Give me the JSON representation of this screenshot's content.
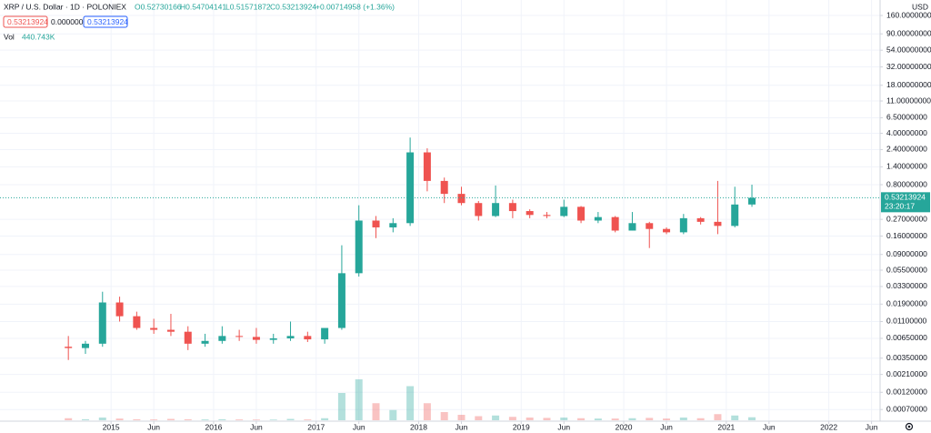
{
  "chart_data": {
    "type": "candlestick",
    "title": "XRP / U.S. Dollar · 1D · POLONIEX",
    "ohlc_labels": [
      "O0.52730166",
      "H0.54704141",
      "L0.51571872",
      "C0.53213924",
      "+0.00714958 (+1.36%)"
    ],
    "badges": [
      "0.53213924",
      "0.00000000",
      "0.53213924"
    ],
    "volume_label": "Vol",
    "volume_value": "440.743K",
    "currency": "USD",
    "last_price": 0.53213924,
    "countdown": "23:20:17",
    "log_scale": true,
    "grid": true,
    "up_color": "#26a69a",
    "down_color": "#ef5350",
    "x": [
      "2014-08",
      "2014-10",
      "2014-12",
      "2015-02",
      "2015-04",
      "2015-06",
      "2015-08",
      "2015-10",
      "2015-12",
      "2016-02",
      "2016-04",
      "2016-06",
      "2016-08",
      "2016-10",
      "2016-12",
      "2017-02",
      "2017-04",
      "2017-06",
      "2017-08",
      "2017-10",
      "2017-12",
      "2018-02",
      "2018-04",
      "2018-06",
      "2018-08",
      "2018-10",
      "2018-12",
      "2019-02",
      "2019-04",
      "2019-06",
      "2019-08",
      "2019-10",
      "2019-12",
      "2020-02",
      "2020-04",
      "2020-06",
      "2020-08",
      "2020-10",
      "2020-12",
      "2021-02",
      "2021-04"
    ],
    "open": [
      0.005,
      0.0048,
      0.0055,
      0.02,
      0.013,
      0.009,
      0.0085,
      0.008,
      0.0055,
      0.006,
      0.007,
      0.0068,
      0.0062,
      0.0065,
      0.007,
      0.0063,
      0.009,
      0.05,
      0.26,
      0.21,
      0.24,
      2.2,
      0.9,
      0.6,
      0.45,
      0.3,
      0.45,
      0.35,
      0.31,
      0.3,
      0.4,
      0.26,
      0.29,
      0.19,
      0.24,
      0.2,
      0.18,
      0.28,
      0.25,
      0.22,
      0.43
    ],
    "high": [
      0.007,
      0.006,
      0.028,
      0.024,
      0.015,
      0.012,
      0.014,
      0.0095,
      0.0075,
      0.0095,
      0.0085,
      0.009,
      0.0075,
      0.011,
      0.008,
      0.0075,
      0.12,
      0.42,
      0.3,
      0.28,
      3.5,
      2.5,
      1.0,
      0.75,
      0.48,
      0.78,
      0.5,
      0.37,
      0.34,
      0.5,
      0.41,
      0.34,
      0.3,
      0.34,
      0.25,
      0.21,
      0.32,
      0.29,
      0.9,
      0.75,
      0.8
    ],
    "low": [
      0.0033,
      0.004,
      0.005,
      0.011,
      0.0085,
      0.0075,
      0.007,
      0.0045,
      0.005,
      0.0055,
      0.006,
      0.0055,
      0.0055,
      0.006,
      0.0058,
      0.0055,
      0.0085,
      0.045,
      0.15,
      0.18,
      0.22,
      0.65,
      0.45,
      0.42,
      0.26,
      0.29,
      0.28,
      0.28,
      0.28,
      0.29,
      0.24,
      0.24,
      0.18,
      0.19,
      0.11,
      0.17,
      0.17,
      0.23,
      0.17,
      0.21,
      0.4
    ],
    "close": [
      0.0048,
      0.0055,
      0.02,
      0.013,
      0.009,
      0.0085,
      0.008,
      0.0055,
      0.006,
      0.007,
      0.0068,
      0.0062,
      0.0065,
      0.007,
      0.0063,
      0.009,
      0.05,
      0.26,
      0.21,
      0.24,
      2.2,
      0.9,
      0.6,
      0.45,
      0.3,
      0.45,
      0.35,
      0.31,
      0.3,
      0.4,
      0.26,
      0.29,
      0.19,
      0.24,
      0.2,
      0.18,
      0.28,
      0.25,
      0.22,
      0.43,
      0.53
    ],
    "volume": [
      300,
      150,
      400,
      250,
      150,
      120,
      200,
      150,
      120,
      150,
      120,
      100,
      100,
      200,
      120,
      300,
      4000,
      6000,
      2500,
      1500,
      5000,
      2500,
      1200,
      800,
      600,
      700,
      500,
      400,
      350,
      400,
      300,
      250,
      250,
      300,
      350,
      250,
      400,
      300,
      900,
      700,
      440.743
    ],
    "xlim": [
      "2013-12",
      "2022-07"
    ],
    "xticks": [
      {
        "value": "2015-01",
        "label": "2015"
      },
      {
        "value": "2015-06",
        "label": "Jun"
      },
      {
        "value": "2016-01",
        "label": "2016"
      },
      {
        "value": "2016-06",
        "label": "Jun"
      },
      {
        "value": "2017-01",
        "label": "2017"
      },
      {
        "value": "2017-06",
        "label": "Jun"
      },
      {
        "value": "2018-01",
        "label": "2018"
      },
      {
        "value": "2018-06",
        "label": "Jun"
      },
      {
        "value": "2019-01",
        "label": "2019"
      },
      {
        "value": "2019-06",
        "label": "Jun"
      },
      {
        "value": "2020-01",
        "label": "2020"
      },
      {
        "value": "2020-06",
        "label": "Jun"
      },
      {
        "value": "2021-01",
        "label": "2021"
      },
      {
        "value": "2021-06",
        "label": "Jun"
      },
      {
        "value": "2022-01",
        "label": "2022"
      },
      {
        "value": "2022-06",
        "label": "Jun"
      }
    ],
    "ylim": [
      0.0005,
      260
    ],
    "yticks": [
      {
        "value": 160,
        "label": "160.00000000"
      },
      {
        "value": 90,
        "label": "90.00000000"
      },
      {
        "value": 54,
        "label": "54.00000000"
      },
      {
        "value": 32,
        "label": "32.00000000"
      },
      {
        "value": 18,
        "label": "18.00000000"
      },
      {
        "value": 11,
        "label": "11.00000000"
      },
      {
        "value": 6.5,
        "label": "6.50000000"
      },
      {
        "value": 4,
        "label": "4.00000000"
      },
      {
        "value": 2.4,
        "label": "2.40000000"
      },
      {
        "value": 1.4,
        "label": "1.40000000"
      },
      {
        "value": 0.8,
        "label": "0.80000000"
      },
      {
        "value": 0.27,
        "label": "0.27000000"
      },
      {
        "value": 0.16,
        "label": "0.16000000"
      },
      {
        "value": 0.09,
        "label": "0.09000000"
      },
      {
        "value": 0.055,
        "label": "0.05500000"
      },
      {
        "value": 0.033,
        "label": "0.03300000"
      },
      {
        "value": 0.019,
        "label": "0.01900000"
      },
      {
        "value": 0.011,
        "label": "0.01100000"
      },
      {
        "value": 0.0065,
        "label": "0.00650000"
      },
      {
        "value": 0.0035,
        "label": "0.00350000"
      },
      {
        "value": 0.0021,
        "label": "0.00210000"
      },
      {
        "value": 0.0012,
        "label": "0.00120000"
      },
      {
        "value": 0.0007,
        "label": "0.00070000"
      }
    ]
  }
}
